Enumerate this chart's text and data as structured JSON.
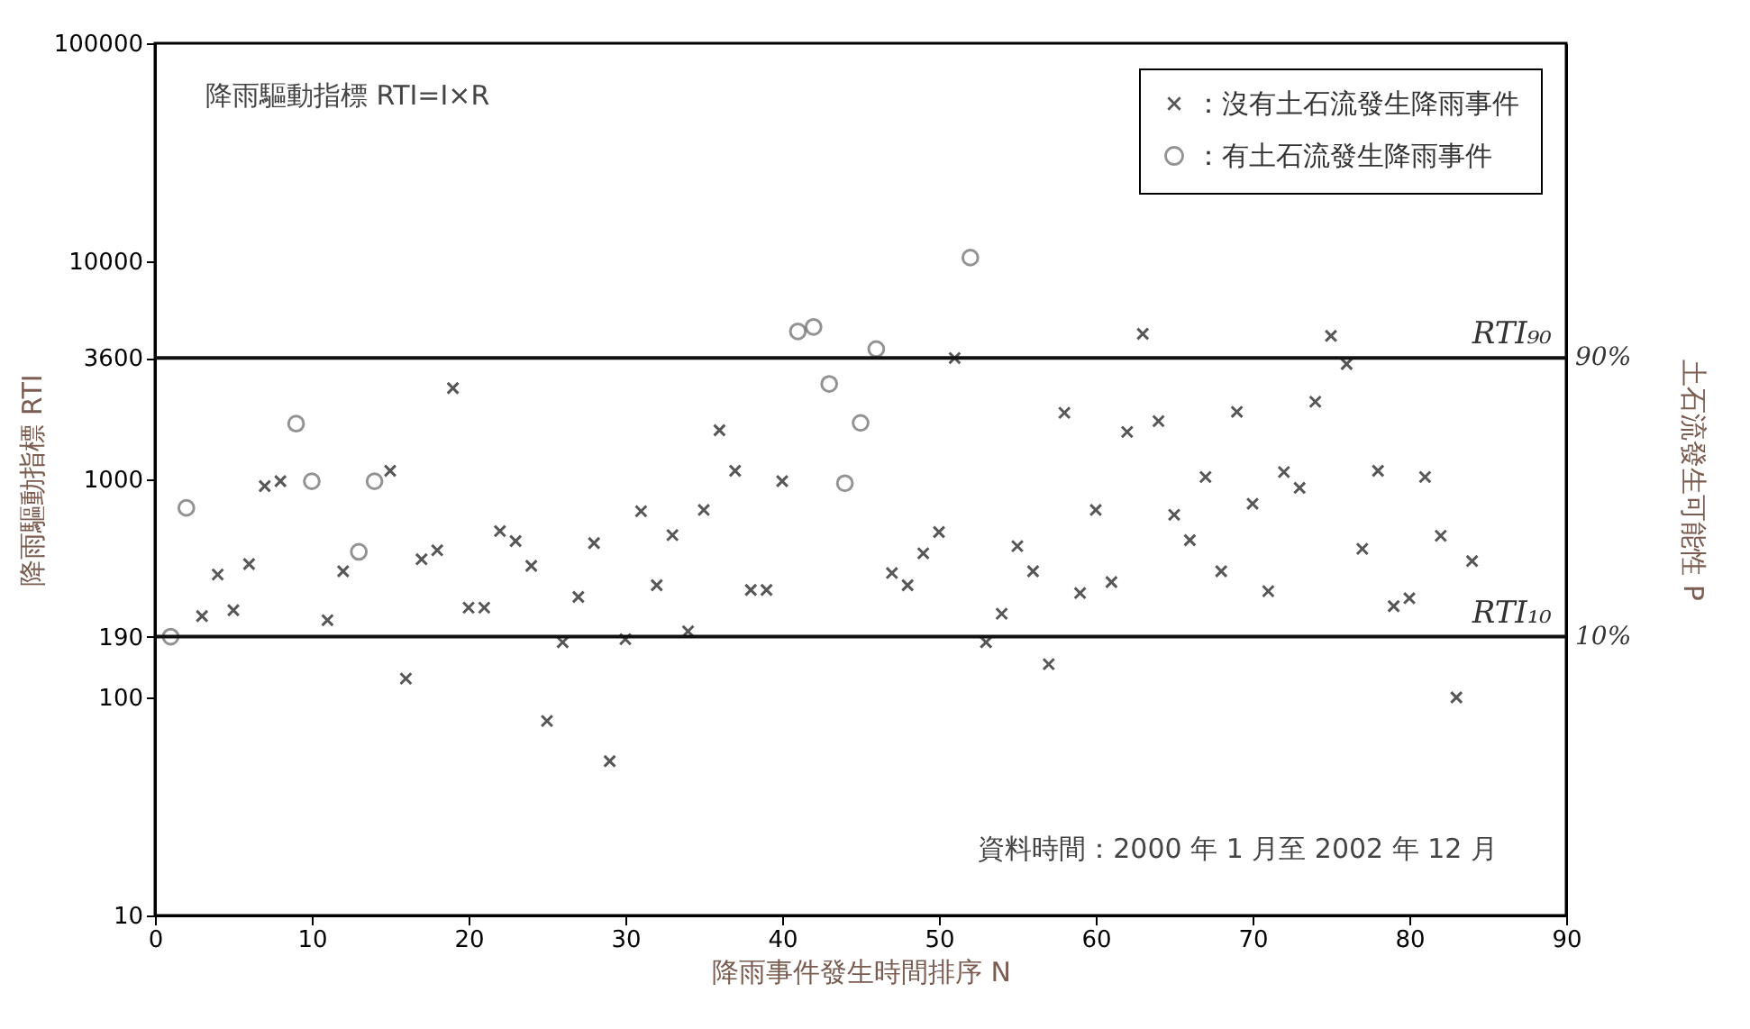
{
  "chart_data": {
    "type": "scatter",
    "xlabel": "降雨事件發生時間排序 N",
    "ylabel": "降雨驅動指標 RTI",
    "y2label": "土石流發生可能性 P",
    "xlim": [
      0,
      90
    ],
    "xticks": [
      0,
      10,
      20,
      30,
      40,
      50,
      60,
      70,
      80,
      90
    ],
    "ylim": [
      10,
      100000
    ],
    "yticks": [
      10,
      100,
      190,
      1000,
      3600,
      10000,
      100000
    ],
    "log": "y",
    "grid": false,
    "legend": "top right",
    "series": [
      {
        "name": "：沒有土石流發生降雨事件",
        "color": "#111111",
        "marker": "cross",
        "x": [
          3,
          4,
          5,
          6,
          7,
          8,
          11,
          12,
          15,
          16,
          17,
          18,
          19,
          20,
          21,
          22,
          23,
          24,
          25,
          26,
          27,
          28,
          29,
          30,
          31,
          32,
          33,
          34,
          35,
          36,
          37,
          38,
          39,
          40,
          47,
          48,
          49,
          50,
          51,
          53,
          54,
          55,
          56,
          57,
          58,
          59,
          60,
          61,
          62,
          63,
          64,
          65,
          66,
          67,
          68,
          69,
          70,
          71,
          72,
          73,
          74,
          75,
          76,
          77,
          78,
          79,
          80,
          81,
          82,
          83,
          84
        ],
        "values": [
          236,
          366,
          251,
          409,
          931,
          981,
          226,
          379,
          1095,
          122,
          430,
          473,
          2620,
          258,
          258,
          579,
          521,
          401,
          78,
          179,
          289,
          510,
          51,
          185,
          714,
          327,
          555,
          201,
          724,
          1680,
          1095,
          311,
          311,
          981,
          372,
          327,
          458,
          573,
          3600,
          179,
          242,
          494,
          379,
          142,
          2020,
          301,
          724,
          338,
          1650,
          4650,
          1850,
          688,
          526,
          1025,
          379,
          2040,
          773,
          307,
          1080,
          914,
          2270,
          4550,
          3380,
          480,
          1095,
          262,
          285,
          1025,
          551,
          100,
          422
        ]
      },
      {
        "name": "：有土石流發生降雨事件",
        "color": "#666666",
        "marker": "circle",
        "x": [
          1,
          2,
          9,
          10,
          13,
          14,
          41,
          42,
          43,
          44,
          45,
          46,
          52
        ],
        "values": [
          190,
          740,
          1800,
          980,
          465,
          980,
          4770,
          5000,
          2740,
          960,
          1815,
          3960,
          10400
        ]
      }
    ],
    "ref_lines": [
      {
        "axis": "y",
        "value": 3600,
        "label": "RTI₉₀"
      },
      {
        "axis": "y",
        "value": 190,
        "label": "RTI₁₀"
      }
    ],
    "annotations": [
      "降雨驅動指標 RTI=I×R",
      "資料時間：2000 年 1 月至 2002 年 12 月",
      "90%",
      "10%"
    ]
  }
}
